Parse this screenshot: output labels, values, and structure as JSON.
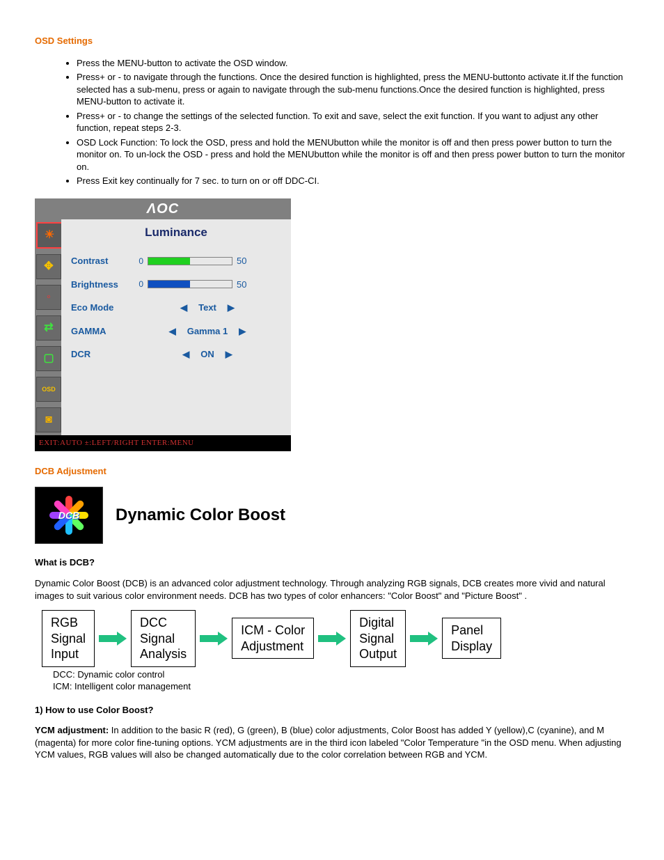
{
  "headings": {
    "osd_settings": "OSD Settings",
    "dcb_adjustment": "DCB Adjustment"
  },
  "bullets": [
    "Press the MENU-button to activate the OSD window.",
    "Press+ or - to navigate through the functions. Once the desired function is highlighted, press the MENU-buttonto activate it.If the function selected has a sub-menu, press or again to navigate through the sub-menu functions.Once the desired function is highlighted, press MENU-button to activate it.",
    "Press+ or - to change the settings of the selected function. To exit and save, select the exit function. If you want to adjust any other function, repeat steps 2-3.",
    "OSD Lock Function: To lock the OSD, press and hold the MENUbutton while the monitor is off and then press power button to turn the monitor on. To un-lock the OSD - press and hold the MENUbutton while the monitor is off and then press power button to turn the monitor on.",
    "Press Exit key continually for 7 sec. to turn on or off DDC-CI."
  ],
  "osd": {
    "brand": "ΛOC",
    "title": "Luminance",
    "footer": "EXIT:AUTO  ±:LEFT/RIGHT  ENTER:MENU",
    "icons": [
      {
        "glyph": "☀",
        "color": "#ff6a00",
        "active": true
      },
      {
        "glyph": "✥",
        "color": "#f5c000",
        "active": false
      },
      {
        "glyph": "◦",
        "color": "#ff3030",
        "active": false
      },
      {
        "glyph": "⇄",
        "color": "#40e040",
        "active": false
      },
      {
        "glyph": "▢",
        "color": "#40e040",
        "active": false
      },
      {
        "glyph": "OSD",
        "color": "#f5c000",
        "active": false
      },
      {
        "glyph": "◙",
        "color": "#f0b000",
        "active": false
      }
    ],
    "rows": [
      {
        "type": "slider",
        "label": "Contrast",
        "min": "0",
        "value": "50",
        "fill_pct": 50,
        "fill_color": "green"
      },
      {
        "type": "slider",
        "label": "Brightness",
        "min": "0",
        "value": "50",
        "fill_pct": 50,
        "fill_color": "blue"
      },
      {
        "type": "select",
        "label": "Eco Mode",
        "value": "Text"
      },
      {
        "type": "select",
        "label": "GAMMA",
        "value": "Gamma 1"
      },
      {
        "type": "select",
        "label": "DCR",
        "value": "ON"
      }
    ]
  },
  "dcb": {
    "icon_label": "DCB",
    "title": "Dynamic Color Boost",
    "petals": [
      "#ff4040",
      "#ffa000",
      "#ffe000",
      "#60ff60",
      "#20c0ff",
      "#2060ff",
      "#a040ff",
      "#ff40c0"
    ],
    "what_heading": "What is DCB?",
    "what_text": "Dynamic Color Boost (DCB) is an advanced color adjustment technology. Through analyzing RGB signals, DCB creates more vivid and natural images to suit various color environment needs. DCB has two types of color enhancers: \"Color Boost\" and \"Picture Boost\" ."
  },
  "flow": {
    "boxes": [
      "RGB\nSignal\nInput",
      "DCC\nSignal\nAnalysis",
      "ICM - Color\nAdjustment",
      "Digital\nSignal\nOutput",
      "Panel\nDisplay"
    ],
    "arrow_color": "#20c080",
    "note1": "DCC: Dynamic color control",
    "note2": "ICM: Intelligent color management"
  },
  "howto": {
    "heading": "1) How to use Color Boost?",
    "ycm_label": "YCM adjustment:",
    "ycm_text": " In addition to the basic R (red), G (green), B (blue) color adjustments, Color Boost has added Y (yellow),C (cyanine), and M (magenta) for more color fine-tuning options. YCM adjustments are in the third icon labeled \"Color Temperature \"in the OSD menu. When adjusting YCM values, RGB values will also be changed automatically due to the color correlation between RGB and YCM."
  }
}
